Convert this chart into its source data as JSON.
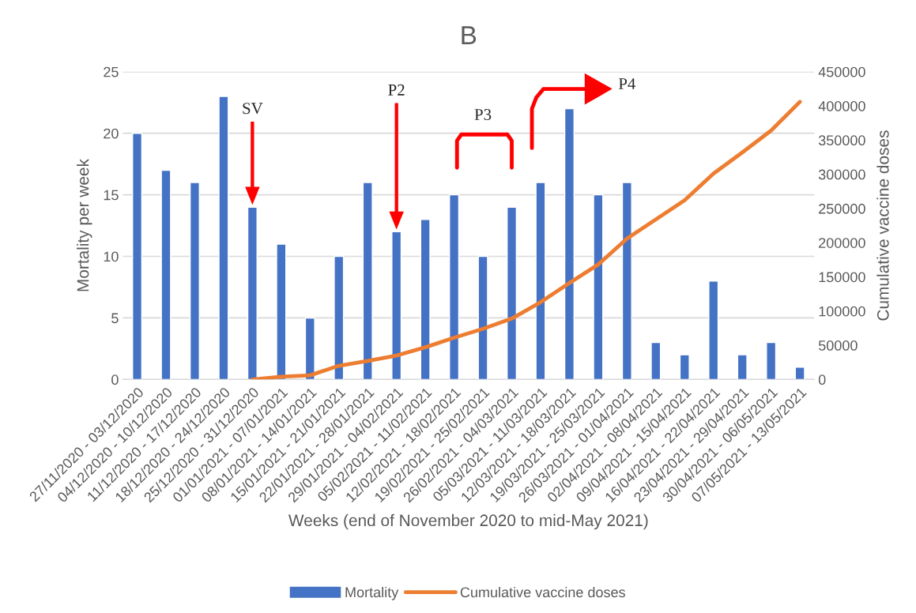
{
  "chart_data": {
    "type": "bar",
    "title": "B",
    "xlabel": "Weeks (end of November 2020 to mid-May 2021)",
    "ylabel": "Mortality per week",
    "y2label": "Cumulative vaccine doses",
    "categories": [
      "27/11/2020 - 03/12/2020",
      "04/12/2020 - 10/12/2020",
      "11/12/2020 - 17/12/2020",
      "18/12/2020 - 24/12/2020",
      "25/12/2020 - 31/12/2020",
      "01/01/2021 - 07/01/2021",
      "08/01/2021 - 14/01/2021",
      "15/01/2021 - 21/01/2021",
      "22/01/2021 - 28/01/2021",
      "29/01/2021 - 04/02/2021",
      "05/02/2021 - 11/02/2021",
      "12/02/2021 - 18/02/2021",
      "19/02/2021 - 25/02/2021",
      "26/02/2021 - 04/03/2021",
      "05/03/2021 - 11/03/2021",
      "12/03/2021 - 18/03/2021",
      "19/03/2021 - 25/03/2021",
      "26/03/2021 - 01/04/2021",
      "02/04/2021 - 08/04/2021",
      "09/04/2021 - 15/04/2021",
      "16/04/2021 - 22/04/2021",
      "23/04/2021 - 29/04/2021",
      "30/04/2021 - 06/05/2021",
      "07/05/2021 - 13/05/2021"
    ],
    "series": [
      {
        "name": "Mortality",
        "color": "#4472c4",
        "values": [
          20,
          17,
          16,
          23,
          14,
          11,
          5,
          10,
          16,
          12,
          13,
          15,
          10,
          14,
          16,
          22,
          15,
          16,
          3,
          2,
          8,
          2,
          3,
          1
        ]
      },
      {
        "name": "Cumulative vaccine doses",
        "type": "line",
        "axis": "y2",
        "color": "#ed7d31",
        "values": [
          null,
          null,
          null,
          null,
          0,
          4000,
          6000,
          20000,
          27000,
          35000,
          47000,
          61000,
          74000,
          89000,
          113000,
          141000,
          168000,
          206000,
          234000,
          262000,
          301000,
          332000,
          364000,
          406000
        ]
      }
    ],
    "ylim": [
      0,
      25
    ],
    "yticks": [
      0,
      5,
      10,
      15,
      20,
      25
    ],
    "y2lim": [
      0,
      450000
    ],
    "y2ticks": [
      0,
      50000,
      100000,
      150000,
      200000,
      250000,
      300000,
      350000,
      400000,
      450000
    ],
    "grid": "y",
    "legend": "bottom",
    "marker": "none",
    "line_style": "solid",
    "annotations": [
      "SV",
      "P2",
      "P3",
      "P4"
    ]
  }
}
